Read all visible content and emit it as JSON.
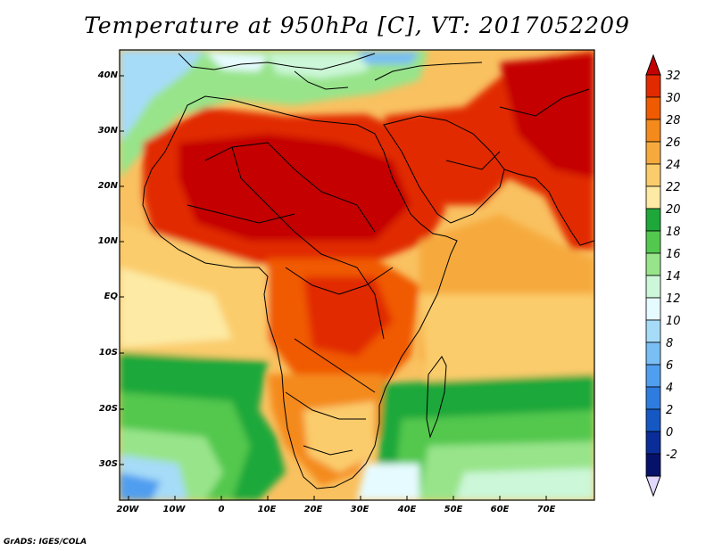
{
  "title": "Temperature at 950hPa [C], VT: 2017052209",
  "credit": "GrADS: IGES/COLA",
  "lat_labels": [
    "40N",
    "30N",
    "20N",
    "10N",
    "EQ",
    "10S",
    "20S",
    "30S"
  ],
  "lon_labels": [
    "20W",
    "10W",
    "0",
    "10E",
    "20E",
    "30E",
    "40E",
    "50E",
    "60E",
    "70E"
  ],
  "colorbar": {
    "labels": [
      "32",
      "30",
      "28",
      "26",
      "24",
      "22",
      "20",
      "18",
      "16",
      "14",
      "12",
      "10",
      "8",
      "6",
      "4",
      "2",
      "0",
      "-2"
    ],
    "colors": [
      "#c40000",
      "#e12a00",
      "#f05a00",
      "#f48a1c",
      "#f6aa3e",
      "#fbcc6c",
      "#fdeaa4",
      "#1ea83a",
      "#53c84e",
      "#98e48a",
      "#ccf7d8",
      "#e6fbff",
      "#a6dcf8",
      "#79bef4",
      "#4f9ef0",
      "#2e7ce0",
      "#1558c4",
      "#0a2d9a",
      "#06126a",
      "#e2d8ff"
    ]
  }
}
